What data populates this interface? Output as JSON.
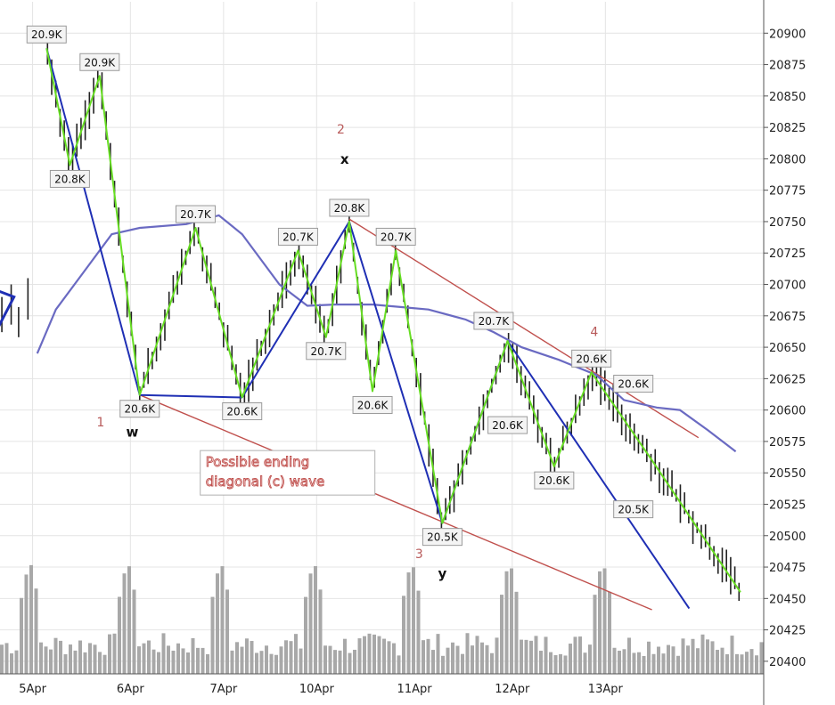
{
  "chart_data": {
    "type": "line",
    "title": "",
    "xlabel": "",
    "ylabel": "",
    "ylim": [
      20390,
      20925
    ],
    "y_ticks": [
      20400,
      20425,
      20450,
      20475,
      20500,
      20525,
      20550,
      20575,
      20600,
      20625,
      20650,
      20675,
      20700,
      20725,
      20750,
      20775,
      20800,
      20825,
      20850,
      20875,
      20900
    ],
    "x_session_count": 8.2,
    "x_tick_labels": [
      {
        "label": "5Apr",
        "session": 0.35
      },
      {
        "label": "6Apr",
        "session": 1.4
      },
      {
        "label": "7Apr",
        "session": 2.4
      },
      {
        "label": "10Apr",
        "session": 3.4
      },
      {
        "label": "11Apr",
        "session": 4.45
      },
      {
        "label": "12Apr",
        "session": 5.5
      },
      {
        "label": "13Apr",
        "session": 6.5
      }
    ],
    "grid": true,
    "colors": {
      "green": "#66dd22",
      "blue": "#1f2fb4",
      "ma": "#6a6ac2",
      "channel": "#c0504d",
      "volume": "#a8a8a8",
      "candle": "#222222"
    },
    "green_zigzag": [
      [
        0.5,
        20888
      ],
      [
        0.75,
        20795
      ],
      [
        1.07,
        20866
      ],
      [
        1.5,
        20612
      ],
      [
        2.1,
        20745
      ],
      [
        2.6,
        20610
      ],
      [
        3.2,
        20727
      ],
      [
        3.5,
        20658
      ],
      [
        3.75,
        20750
      ],
      [
        4.0,
        20615
      ],
      [
        4.25,
        20727
      ],
      [
        4.75,
        20510
      ],
      [
        5.45,
        20655
      ],
      [
        5.95,
        20555
      ],
      [
        6.35,
        20630
      ],
      [
        7.0,
        20560
      ],
      [
        7.95,
        20455
      ]
    ],
    "blue_zigzag": [
      [
        0.5,
        20888
      ],
      [
        1.5,
        20612
      ],
      [
        2.6,
        20610
      ],
      [
        3.75,
        20750
      ],
      [
        4.75,
        20510
      ],
      [
        5.45,
        20655
      ],
      [
        7.4,
        20442
      ]
    ],
    "blue_wedge": [
      [
        -0.2,
        20700
      ],
      [
        0.15,
        20690
      ],
      [
        -0.2,
        20640
      ]
    ],
    "moving_average": [
      [
        0.4,
        20645
      ],
      [
        0.6,
        20680
      ],
      [
        0.9,
        20710
      ],
      [
        1.2,
        20740
      ],
      [
        1.5,
        20745
      ],
      [
        2.0,
        20748
      ],
      [
        2.35,
        20755
      ],
      [
        2.6,
        20740
      ],
      [
        3.0,
        20700
      ],
      [
        3.3,
        20683
      ],
      [
        3.6,
        20684
      ],
      [
        4.0,
        20684
      ],
      [
        4.3,
        20682
      ],
      [
        4.6,
        20680
      ],
      [
        5.0,
        20672
      ],
      [
        5.3,
        20662
      ],
      [
        5.6,
        20650
      ],
      [
        6.0,
        20640
      ],
      [
        6.4,
        20628
      ],
      [
        6.7,
        20608
      ],
      [
        7.05,
        20602
      ],
      [
        7.3,
        20600
      ],
      [
        7.6,
        20584
      ],
      [
        7.9,
        20567
      ]
    ],
    "channel_upper": [
      [
        3.75,
        20752
      ],
      [
        7.5,
        20578
      ]
    ],
    "channel_lower": [
      [
        1.5,
        20612
      ],
      [
        7.0,
        20441
      ]
    ],
    "point_labels": [
      {
        "text": "20.9K",
        "x": 0.5,
        "y": 20888,
        "pos": "above"
      },
      {
        "text": "20.9K",
        "x": 1.07,
        "y": 20866,
        "pos": "above"
      },
      {
        "text": "20.8K",
        "x": 0.75,
        "y": 20795,
        "pos": "below"
      },
      {
        "text": "20.7K",
        "x": 2.1,
        "y": 20745,
        "pos": "above"
      },
      {
        "text": "20.6K",
        "x": 1.5,
        "y": 20612,
        "pos": "below"
      },
      {
        "text": "20.6K",
        "x": 2.6,
        "y": 20610,
        "pos": "below"
      },
      {
        "text": "20.7K",
        "x": 3.2,
        "y": 20727,
        "pos": "above"
      },
      {
        "text": "20.8K",
        "x": 3.75,
        "y": 20750,
        "pos": "above"
      },
      {
        "text": "20.7K",
        "x": 4.25,
        "y": 20727,
        "pos": "above"
      },
      {
        "text": "20.7K",
        "x": 3.5,
        "y": 20658,
        "pos": "below"
      },
      {
        "text": "20.6K",
        "x": 4.0,
        "y": 20615,
        "pos": "below"
      },
      {
        "text": "20.7K",
        "x": 5.3,
        "y": 20660,
        "pos": "above"
      },
      {
        "text": "20.5K",
        "x": 4.75,
        "y": 20510,
        "pos": "below"
      },
      {
        "text": "20.6K",
        "x": 5.45,
        "y": 20599,
        "pos": "below"
      },
      {
        "text": "20.6K",
        "x": 5.95,
        "y": 20555,
        "pos": "below"
      },
      {
        "text": "20.6K",
        "x": 6.35,
        "y": 20630,
        "pos": "above"
      },
      {
        "text": "20.6K",
        "x": 6.8,
        "y": 20610,
        "pos": "above"
      },
      {
        "text": "20.5K",
        "x": 6.8,
        "y": 20532,
        "pos": "below"
      }
    ],
    "annotations": [
      {
        "text": "w",
        "x": 1.42,
        "y": 20579,
        "style": "wave"
      },
      {
        "text": "x",
        "x": 3.7,
        "y": 20796,
        "style": "wave"
      },
      {
        "text": "y",
        "x": 4.75,
        "y": 20466,
        "style": "wave"
      },
      {
        "text": "1",
        "x": 1.08,
        "y": 20587,
        "style": "sub"
      },
      {
        "text": "2",
        "x": 3.66,
        "y": 20820,
        "style": "sub"
      },
      {
        "text": "3",
        "x": 4.5,
        "y": 20482,
        "style": "sub"
      },
      {
        "text": "4",
        "x": 6.38,
        "y": 20659,
        "style": "sub"
      }
    ],
    "note": {
      "line1": "Possible ending",
      "line2": "diagonal (c) wave",
      "x": 2.15,
      "y": 20555
    }
  }
}
